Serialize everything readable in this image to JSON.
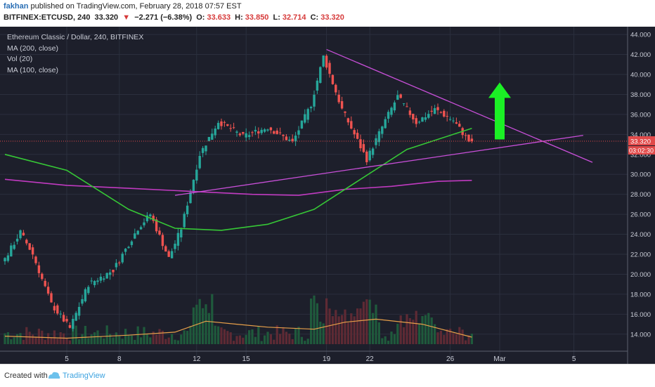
{
  "header": {
    "author": "fakhan",
    "published": "published on TradingView.com, February 28, 2018 07:57 EST",
    "symbol": "BITFINEX:ETCUSD, 240",
    "last": "33.320",
    "arrow": "▼",
    "change": "−2.271 (−6.38%)",
    "o_label": "O:",
    "o_val": "33.633",
    "h_label": "H:",
    "h_val": "33.850",
    "l_label": "L:",
    "l_val": "32.714",
    "c_label": "C:",
    "c_val": "33.320"
  },
  "legend": {
    "title": "Ethereum Classic / Dollar, 240, BITFINEX",
    "ma200": "MA (200, close)",
    "vol": "Vol (20)",
    "ma100": "MA (100, close)"
  },
  "price_tag": {
    "price": "33.320",
    "countdown": "03:02:30"
  },
  "footer": {
    "created": "Created with",
    "brand": "TradingView"
  },
  "colors": {
    "background": "#1d1f2b",
    "up": "#26a69a",
    "down": "#ef5350",
    "ma200": "#c03ac0",
    "ma100": "#36c736",
    "trendline": "#c84fd8",
    "arrow": "#1bf025"
  },
  "chart_data": {
    "type": "candlestick",
    "title": "Ethereum Classic / Dollar, 240, BITFINEX",
    "ylim": [
      13,
      44.5
    ],
    "y_ticks": [
      14,
      16,
      18,
      20,
      22,
      24,
      26,
      28,
      30,
      32,
      34,
      36,
      38,
      40,
      42,
      44
    ],
    "y_tick_labels": [
      "14.000",
      "16.000",
      "18.000",
      "20.000",
      "22.000",
      "24.000",
      "26.000",
      "28.000",
      "30.000",
      "32.000",
      "34.000",
      "36.000",
      "38.000",
      "40.000",
      "42.000",
      "44.000"
    ],
    "x_ticks": [
      5,
      8,
      12,
      15,
      19,
      22,
      26,
      "Mar",
      5
    ],
    "x_tick_labels": [
      "5",
      "8",
      "12",
      "15",
      "19",
      "22",
      "26",
      "Mar",
      "5"
    ],
    "candles_count": 152,
    "key_prices": [
      {
        "t": 0,
        "price": 21.0
      },
      {
        "t": 6,
        "price": 24.2
      },
      {
        "t": 10,
        "price": 22.0
      },
      {
        "t": 16,
        "price": 17.0
      },
      {
        "t": 22,
        "price": 14.6
      },
      {
        "t": 28,
        "price": 19.0
      },
      {
        "t": 36,
        "price": 20.4
      },
      {
        "t": 44,
        "price": 24.6
      },
      {
        "t": 48,
        "price": 26.0
      },
      {
        "t": 54,
        "price": 21.6
      },
      {
        "t": 58,
        "price": 24.6
      },
      {
        "t": 64,
        "price": 32.0
      },
      {
        "t": 70,
        "price": 35.3
      },
      {
        "t": 78,
        "price": 33.8
      },
      {
        "t": 86,
        "price": 34.7
      },
      {
        "t": 94,
        "price": 33.2
      },
      {
        "t": 100,
        "price": 37.0
      },
      {
        "t": 104,
        "price": 41.8
      },
      {
        "t": 110,
        "price": 36.5
      },
      {
        "t": 118,
        "price": 31.5
      },
      {
        "t": 124,
        "price": 35.4
      },
      {
        "t": 128,
        "price": 37.8
      },
      {
        "t": 134,
        "price": 35.2
      },
      {
        "t": 140,
        "price": 36.5
      },
      {
        "t": 146,
        "price": 35.4
      },
      {
        "t": 151,
        "price": 33.32
      }
    ],
    "ma200": [
      {
        "t": 0,
        "price": 29.5
      },
      {
        "t": 20,
        "price": 28.9
      },
      {
        "t": 40,
        "price": 28.6
      },
      {
        "t": 60,
        "price": 28.3
      },
      {
        "t": 80,
        "price": 28.0
      },
      {
        "t": 95,
        "price": 27.9
      },
      {
        "t": 110,
        "price": 28.5
      },
      {
        "t": 125,
        "price": 28.8
      },
      {
        "t": 140,
        "price": 29.3
      },
      {
        "t": 151,
        "price": 29.4
      }
    ],
    "ma100": [
      {
        "t": 0,
        "price": 32.0
      },
      {
        "t": 20,
        "price": 30.4
      },
      {
        "t": 40,
        "price": 26.5
      },
      {
        "t": 55,
        "price": 24.6
      },
      {
        "t": 70,
        "price": 24.4
      },
      {
        "t": 85,
        "price": 25.0
      },
      {
        "t": 100,
        "price": 26.5
      },
      {
        "t": 115,
        "price": 29.5
      },
      {
        "t": 130,
        "price": 32.5
      },
      {
        "t": 145,
        "price": 34.0
      },
      {
        "t": 151,
        "price": 34.6
      }
    ],
    "volume_ma": [
      {
        "t": 0,
        "price": 13.8
      },
      {
        "t": 20,
        "price": 13.6
      },
      {
        "t": 40,
        "price": 13.9
      },
      {
        "t": 55,
        "price": 14.2
      },
      {
        "t": 65,
        "price": 15.3
      },
      {
        "t": 75,
        "price": 15.0
      },
      {
        "t": 85,
        "price": 14.7
      },
      {
        "t": 100,
        "price": 14.5
      },
      {
        "t": 110,
        "price": 15.2
      },
      {
        "t": 120,
        "price": 15.5
      },
      {
        "t": 135,
        "price": 15.0
      },
      {
        "t": 151,
        "price": 13.7
      }
    ],
    "trendlines": [
      {
        "name": "descending",
        "from": {
          "t": 104,
          "price": 42.5
        },
        "to": {
          "t": 190,
          "price": 31.2
        }
      },
      {
        "name": "ascending",
        "from": {
          "t": 55,
          "price": 27.9
        },
        "to": {
          "t": 187,
          "price": 33.9
        }
      }
    ],
    "current_price": 33.32
  }
}
